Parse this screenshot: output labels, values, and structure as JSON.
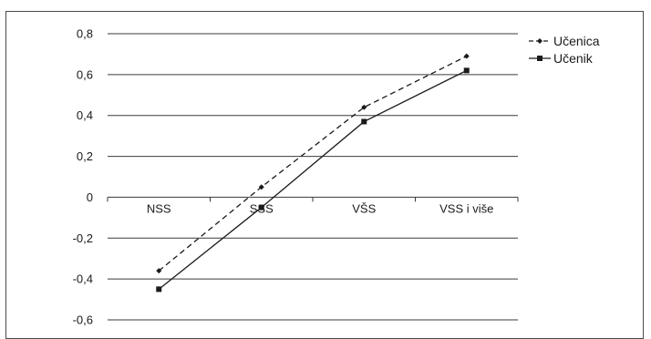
{
  "chart_data": {
    "type": "line",
    "categories": [
      "NSS",
      "SSS",
      "VŠS",
      "VSS i više"
    ],
    "series": [
      {
        "name": "Učenica",
        "values": [
          -0.36,
          0.05,
          0.44,
          0.69
        ],
        "line_style": "dashed",
        "marker": "diamond",
        "color": "#1a1a1a"
      },
      {
        "name": "Učenik",
        "values": [
          -0.45,
          -0.05,
          0.37,
          0.62
        ],
        "line_style": "solid",
        "marker": "square",
        "color": "#1a1a1a"
      }
    ],
    "y_ticks": [
      "0,8",
      "0,6",
      "0,4",
      "0,2",
      "0",
      "-0,2",
      "-0,4",
      "-0,6"
    ],
    "y_tick_values": [
      0.8,
      0.6,
      0.4,
      0.2,
      0,
      -0.2,
      -0.4,
      -0.6
    ],
    "ylim": [
      -0.6,
      0.8
    ],
    "grid": true,
    "legend_position": "top-right",
    "title": "",
    "xlabel": "",
    "ylabel": ""
  }
}
